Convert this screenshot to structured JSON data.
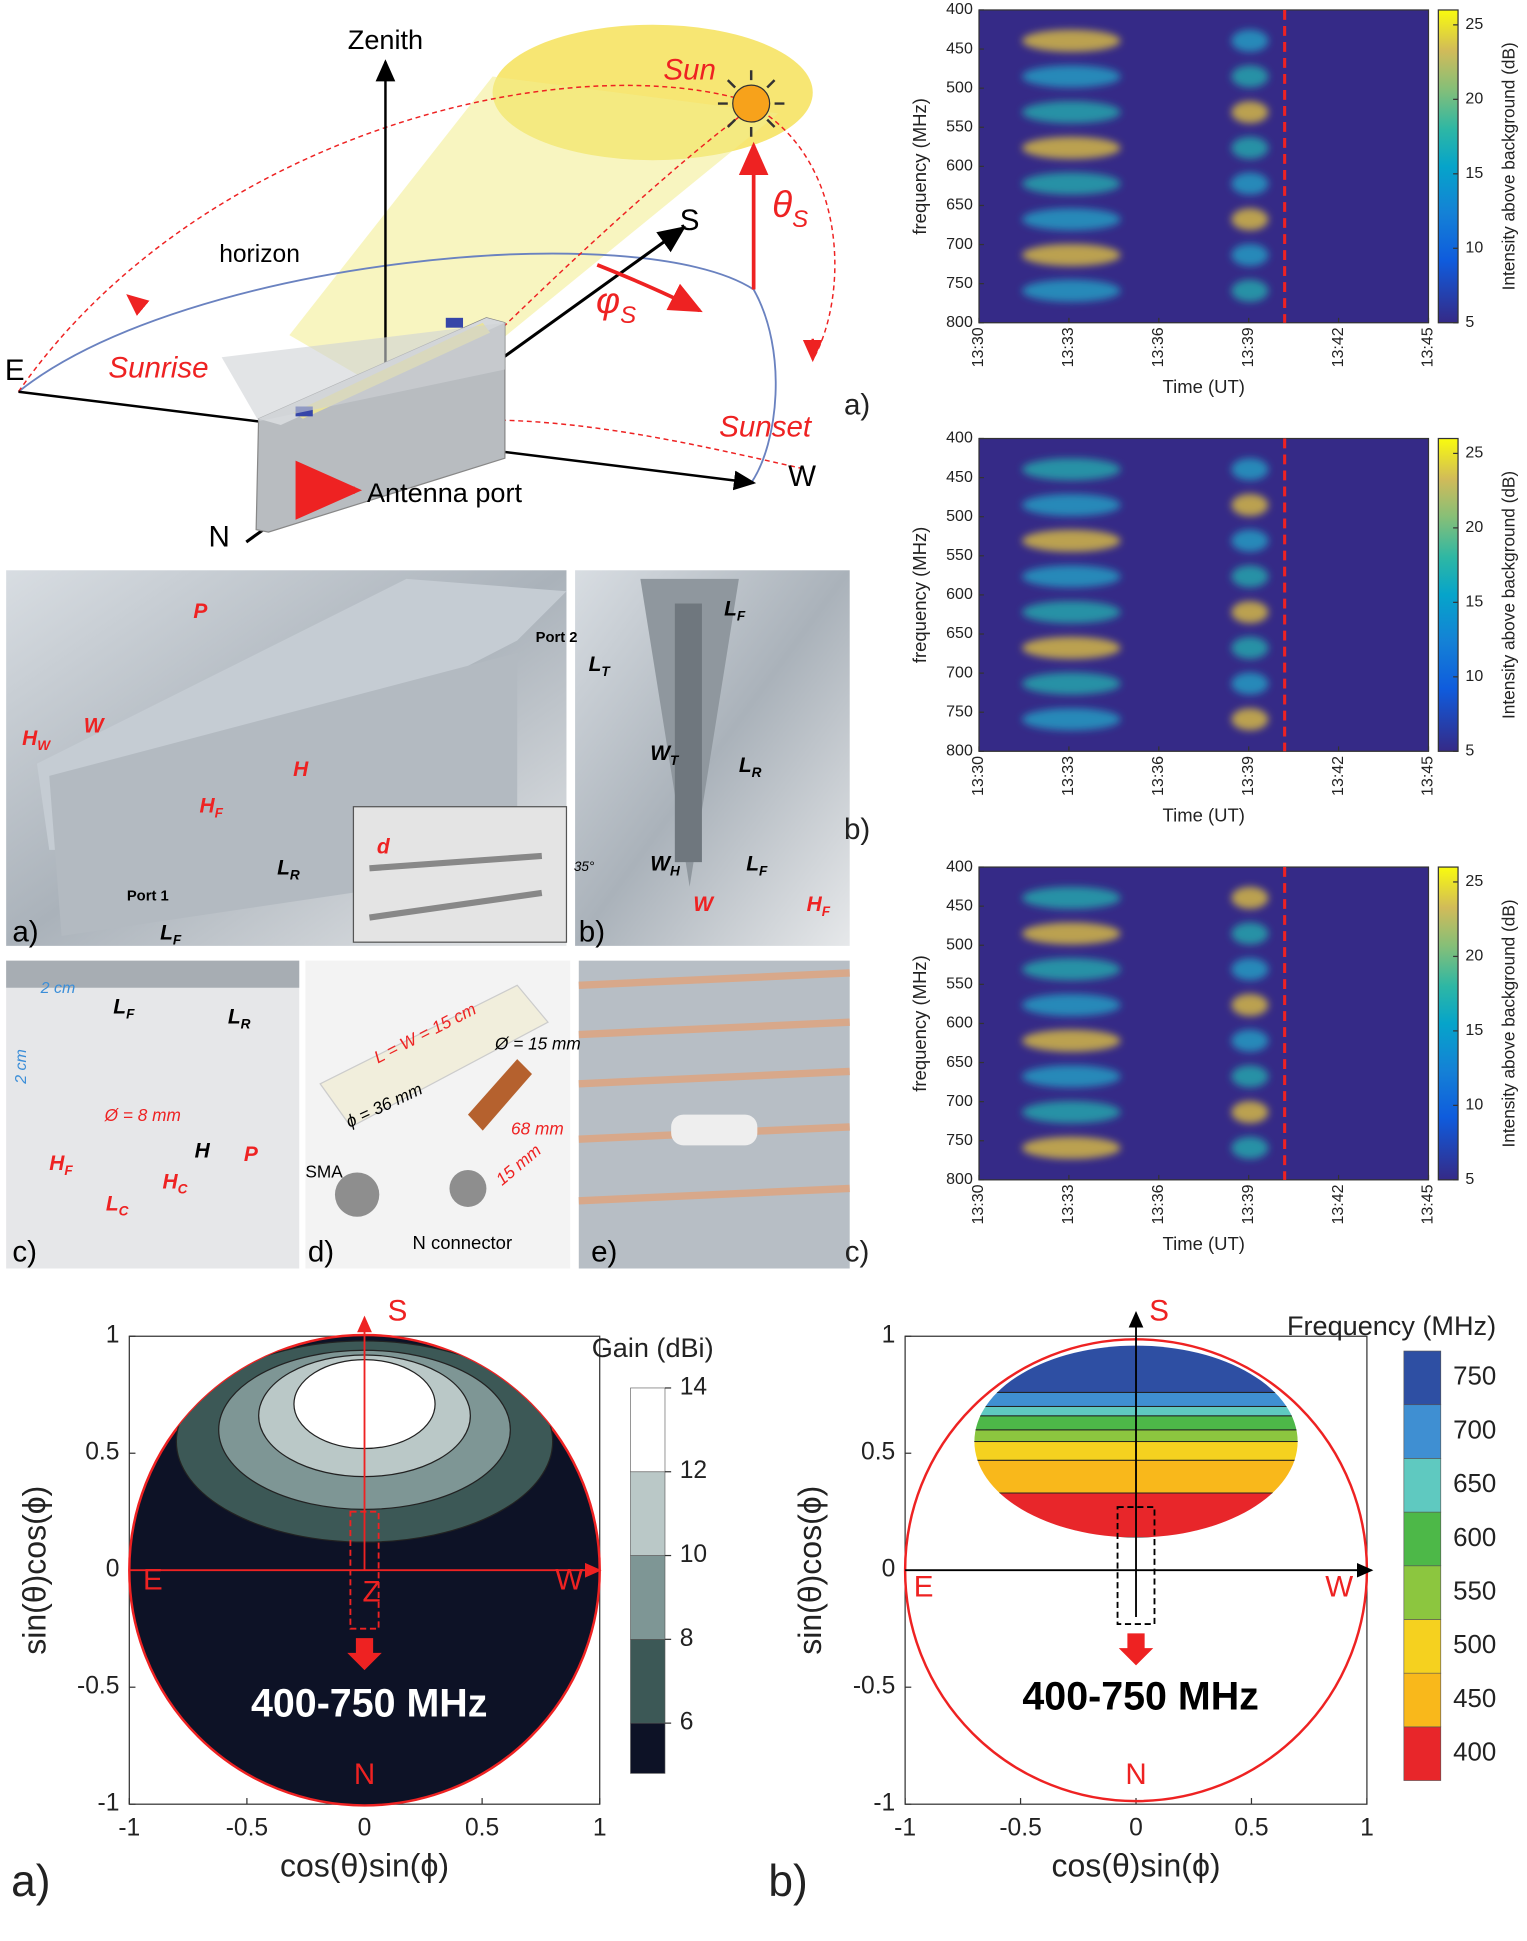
{
  "diagram": {
    "labels": [
      {
        "text": "Zenith"
      },
      {
        "text": "Sun"
      },
      {
        "text": "S"
      },
      {
        "text": "horizon"
      },
      {
        "text": "E"
      },
      {
        "text": "Sunrise"
      },
      {
        "text": "Sunset"
      },
      {
        "text": "W"
      },
      {
        "text": "N"
      },
      {
        "text": "Antenna port"
      },
      {
        "text": "θ",
        "sub": "S"
      },
      {
        "text": "φ",
        "sub": "S"
      }
    ]
  },
  "photos": {
    "labels": [
      {
        "text": "a)"
      },
      {
        "text": "Port 1"
      },
      {
        "text": "Port 2"
      },
      {
        "text": "P"
      },
      {
        "text": "W"
      },
      {
        "text": "H",
        "sub": "W"
      },
      {
        "text": "H",
        "sub": "F"
      },
      {
        "text": "H"
      },
      {
        "text": "L",
        "sub": "R"
      },
      {
        "text": "L",
        "sub": "F"
      },
      {
        "text": "d"
      },
      {
        "text": "b)"
      },
      {
        "text": "L",
        "sub": "F"
      },
      {
        "text": "L",
        "sub": "T"
      },
      {
        "text": "L",
        "sub": "R"
      },
      {
        "text": "W",
        "sub": "T"
      },
      {
        "text": "L",
        "sub": "F"
      },
      {
        "text": "W",
        "sub": "H"
      },
      {
        "text": "35°"
      },
      {
        "text": "W"
      },
      {
        "text": "H",
        "sub": "F"
      },
      {
        "text": "c)"
      },
      {
        "text": "2 cm"
      },
      {
        "text": "L",
        "sub": "F"
      },
      {
        "text": "L",
        "sub": "R"
      },
      {
        "text": "2 cm"
      },
      {
        "text": "Ø = 8 mm"
      },
      {
        "text": "H"
      },
      {
        "text": "P"
      },
      {
        "text": "H",
        "sub": "F"
      },
      {
        "text": "L",
        "sub": "C"
      },
      {
        "text": "H",
        "sub": "C"
      },
      {
        "text": "d)"
      },
      {
        "text": "L = W = 15 cm"
      },
      {
        "text": "Ø = 15 mm"
      },
      {
        "text": "ϕ = 36 mm"
      },
      {
        "text": "68 mm"
      },
      {
        "text": "15 mm"
      },
      {
        "text": "SMA"
      },
      {
        "text": "N connector"
      },
      {
        "text": "e)"
      }
    ]
  },
  "chart_data": [
    {
      "type": "heatmap",
      "panel_label": "a)",
      "xlabel": "Time (UT)",
      "ylabel": "frequency (MHz)",
      "colorbar_label": "Intensity above background (dB)",
      "xlim": [
        810,
        825
      ],
      "xticks": [
        {
          "value": 810,
          "label": "13:30"
        },
        {
          "value": 813,
          "label": "13:33"
        },
        {
          "value": 816,
          "label": "13:36"
        },
        {
          "value": 819,
          "label": "13:39"
        },
        {
          "value": 822,
          "label": "13:42"
        },
        {
          "value": 825,
          "label": "13:45"
        }
      ],
      "ylim": [
        400,
        800
      ],
      "yticks": [
        400,
        450,
        500,
        550,
        600,
        650,
        700,
        750,
        800
      ],
      "clim": [
        5,
        26
      ],
      "cticks": [
        5,
        10,
        15,
        20,
        25
      ],
      "marker_x": 820.2
    },
    {
      "type": "heatmap",
      "panel_label": "b)",
      "xlabel": "Time (UT)",
      "ylabel": "frequency (MHz)",
      "colorbar_label": "Intensity above background (dB)",
      "xlim": [
        810,
        825
      ],
      "xticks": [
        {
          "value": 810,
          "label": "13:30"
        },
        {
          "value": 813,
          "label": "13:33"
        },
        {
          "value": 816,
          "label": "13:36"
        },
        {
          "value": 819,
          "label": "13:39"
        },
        {
          "value": 822,
          "label": "13:42"
        },
        {
          "value": 825,
          "label": "13:45"
        }
      ],
      "ylim": [
        400,
        800
      ],
      "yticks": [
        400,
        450,
        500,
        550,
        600,
        650,
        700,
        750,
        800
      ],
      "clim": [
        5,
        26
      ],
      "cticks": [
        5,
        10,
        15,
        20,
        25
      ],
      "marker_x": 820.2
    },
    {
      "type": "heatmap",
      "panel_label": "c)",
      "xlabel": "Time (UT)",
      "ylabel": "frequency (MHz)",
      "colorbar_label": "Intensity above background (dB)",
      "xlim": [
        810,
        825
      ],
      "xticks": [
        {
          "value": 810,
          "label": "13:30"
        },
        {
          "value": 813,
          "label": "13:33"
        },
        {
          "value": 816,
          "label": "13:36"
        },
        {
          "value": 819,
          "label": "13:39"
        },
        {
          "value": 822,
          "label": "13:42"
        },
        {
          "value": 825,
          "label": "13:45"
        }
      ],
      "ylim": [
        400,
        800
      ],
      "yticks": [
        400,
        450,
        500,
        550,
        600,
        650,
        700,
        750,
        800
      ],
      "clim": [
        5,
        26
      ],
      "cticks": [
        5,
        10,
        15,
        20,
        25
      ],
      "marker_x": 820.2
    },
    {
      "type": "gainmap",
      "panel_label": "a)",
      "xlabel": "cos(θ)sin(ϕ)",
      "ylabel": "sin(θ)cos(ϕ)",
      "colorbar_label": "Gain (dBi)",
      "xlim": [
        -1,
        1
      ],
      "xticks": [
        -1,
        -0.5,
        0,
        0.5,
        1
      ],
      "ylim": [
        -1,
        1
      ],
      "yticks": [
        -1,
        -0.5,
        0,
        0.5,
        1
      ],
      "clim": [
        4.8,
        14
      ],
      "cticks": [
        6,
        8,
        10,
        12,
        14
      ],
      "colors": [
        "#0d1226",
        "#3c5856",
        "#7e9695",
        "#bac8c7",
        "#ffffff"
      ],
      "annotations": [
        "S",
        "E",
        "W",
        "N",
        "Z",
        "400-750 MHz"
      ]
    },
    {
      "type": "freqmap",
      "panel_label": "b)",
      "xlabel": "cos(θ)sin(ϕ)",
      "ylabel": "sin(θ)cos(ϕ)",
      "colorbar_label": "Frequency (MHz)",
      "xlim": [
        -1,
        1
      ],
      "xticks": [
        -1,
        -0.5,
        0,
        0.5,
        1
      ],
      "ylim": [
        -1,
        1
      ],
      "yticks": [
        -1,
        -0.5,
        0,
        0.5,
        1
      ],
      "levels": [
        400,
        450,
        500,
        550,
        600,
        650,
        700,
        750
      ],
      "colors": [
        "#e8262a",
        "#f9b81b",
        "#f5d11f",
        "#8cc63f",
        "#4db848",
        "#5fc9c0",
        "#3f8fd2",
        "#2e4fa3"
      ],
      "annotations": [
        "S",
        "E",
        "W",
        "N",
        "400-750 MHz"
      ]
    }
  ]
}
